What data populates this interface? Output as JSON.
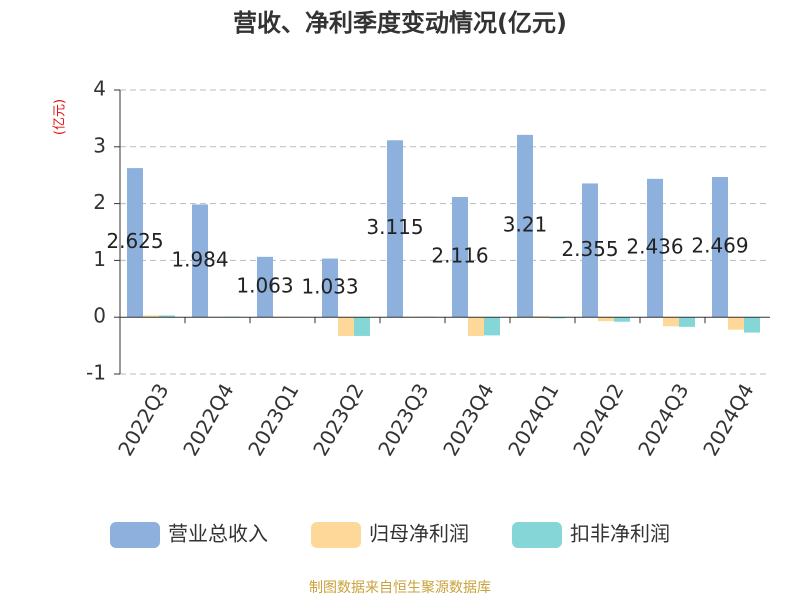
{
  "chart_data": {
    "type": "bar",
    "title": "营收、净利季度变动情况(亿元)",
    "y_label": "(亿元)",
    "source": "制图数据来自恒生聚源数据库",
    "categories": [
      "2022Q3",
      "2022Q4",
      "2023Q1",
      "2023Q2",
      "2023Q3",
      "2023Q4",
      "2024Q1",
      "2024Q2",
      "2024Q3",
      "2024Q4"
    ],
    "series": [
      {
        "name": "营业总收入",
        "color": "#8eb0dd",
        "values": [
          2.625,
          1.984,
          1.063,
          1.033,
          3.115,
          2.116,
          3.21,
          2.355,
          2.436,
          2.469
        ],
        "show_labels": true
      },
      {
        "name": "归母净利润",
        "color": "#fdd898",
        "values": [
          0.03,
          0.01,
          0.01,
          -0.33,
          0.01,
          -0.33,
          0.02,
          -0.07,
          -0.16,
          -0.22
        ]
      },
      {
        "name": "扣非净利润",
        "color": "#85d6d6",
        "values": [
          0.03,
          0.01,
          0.005,
          -0.33,
          0.01,
          -0.32,
          -0.02,
          -0.08,
          -0.17,
          -0.27
        ]
      }
    ],
    "ylim": [
      -1,
      4
    ],
    "yticks": [
      -1,
      0,
      1,
      2,
      3,
      4
    ],
    "grid": true
  }
}
